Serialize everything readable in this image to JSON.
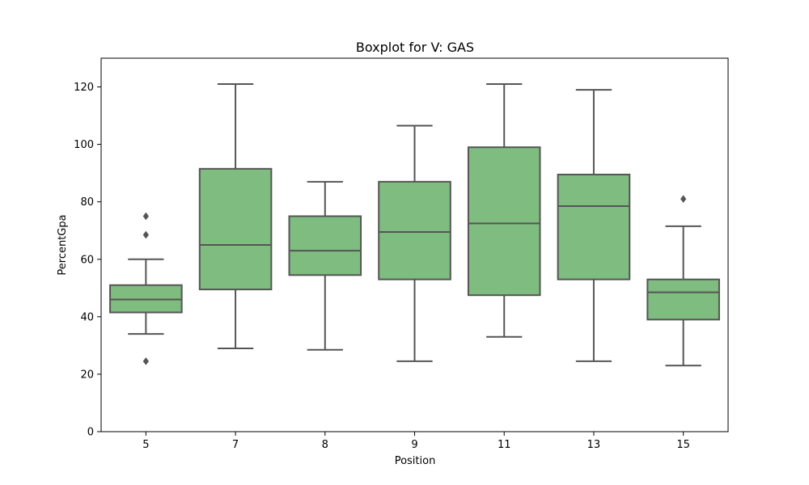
{
  "chart_data": {
    "type": "boxplot",
    "title": "Boxplot for V: GAS",
    "xlabel": "Position",
    "ylabel": "PercentGpa",
    "ylim": [
      0,
      130
    ],
    "yticks": [
      0,
      20,
      40,
      60,
      80,
      100,
      120
    ],
    "grid": false,
    "categories": [
      "5",
      "7",
      "8",
      "9",
      "11",
      "13",
      "15"
    ],
    "boxes": [
      {
        "category": "5",
        "whisker_low": 34,
        "q1": 41.5,
        "median": 46,
        "q3": 51,
        "whisker_high": 60,
        "outliers": [
          75,
          68.5,
          24.5
        ]
      },
      {
        "category": "7",
        "whisker_low": 29,
        "q1": 49.5,
        "median": 65,
        "q3": 91.5,
        "whisker_high": 121,
        "outliers": []
      },
      {
        "category": "8",
        "whisker_low": 28.5,
        "q1": 54.5,
        "median": 63,
        "q3": 75,
        "whisker_high": 87,
        "outliers": []
      },
      {
        "category": "9",
        "whisker_low": 24.5,
        "q1": 53,
        "median": 69.5,
        "q3": 87,
        "whisker_high": 106.5,
        "outliers": []
      },
      {
        "category": "11",
        "whisker_low": 33,
        "q1": 47.5,
        "median": 72.5,
        "q3": 99,
        "whisker_high": 121,
        "outliers": []
      },
      {
        "category": "13",
        "whisker_low": 24.5,
        "q1": 53,
        "median": 78.5,
        "q3": 89.5,
        "whisker_high": 119,
        "outliers": []
      },
      {
        "category": "15",
        "whisker_low": 23,
        "q1": 39,
        "median": 48.5,
        "q3": 53,
        "whisker_high": 71.5,
        "outliers": [
          81
        ]
      }
    ],
    "colors": {
      "box_fill": "#7ebc7f",
      "line": "#555555"
    }
  }
}
